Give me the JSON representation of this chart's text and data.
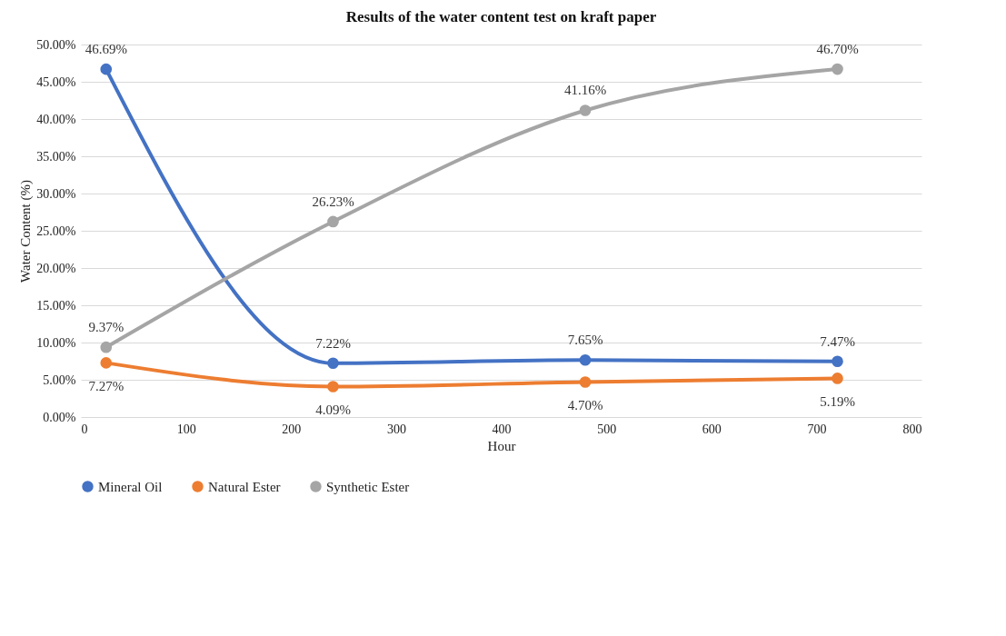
{
  "chart_data": {
    "type": "line",
    "title": "Results of the water content test on kraft paper",
    "xlabel": "Hour",
    "ylabel": "Water Content (%)",
    "x": [
      24,
      240,
      480,
      720
    ],
    "series": [
      {
        "name": "Mineral Oil",
        "color": "#4472c4",
        "values": [
          46.69,
          7.22,
          7.65,
          7.47
        ],
        "value_labels": [
          "46.69%",
          "7.22%",
          "7.65%",
          "7.47%"
        ]
      },
      {
        "name": "Natural Ester",
        "color": "#ed7d31",
        "values": [
          7.27,
          4.09,
          4.7,
          5.19
        ],
        "value_labels": [
          "7.27%",
          "4.09%",
          "4.70%",
          "5.19%"
        ]
      },
      {
        "name": "Synthetic Ester",
        "color": "#a5a5a5",
        "values": [
          9.37,
          26.23,
          41.16,
          46.7
        ],
        "value_labels": [
          "9.37%",
          "26.23%",
          "41.16%",
          "46.70%"
        ]
      }
    ],
    "xlim": [
      0,
      800
    ],
    "xticks": [
      0,
      100,
      200,
      300,
      400,
      500,
      600,
      700,
      800
    ],
    "ylim": [
      0,
      50
    ],
    "yticks": [
      {
        "value": 0,
        "label": "0.00%"
      },
      {
        "value": 5,
        "label": "5.00%"
      },
      {
        "value": 10,
        "label": "10.00%"
      },
      {
        "value": 15,
        "label": "15.00%"
      },
      {
        "value": 20,
        "label": "20.00%"
      },
      {
        "value": 25,
        "label": "25.00%"
      },
      {
        "value": 30,
        "label": "30.00%"
      },
      {
        "value": 35,
        "label": "35.00%"
      },
      {
        "value": 40,
        "label": "40.00%"
      },
      {
        "value": 45,
        "label": "45.00%"
      },
      {
        "value": 50,
        "label": "50.00%"
      }
    ],
    "grid": "y",
    "legend": "bottom",
    "marker": "circle",
    "line_style": "solid"
  }
}
